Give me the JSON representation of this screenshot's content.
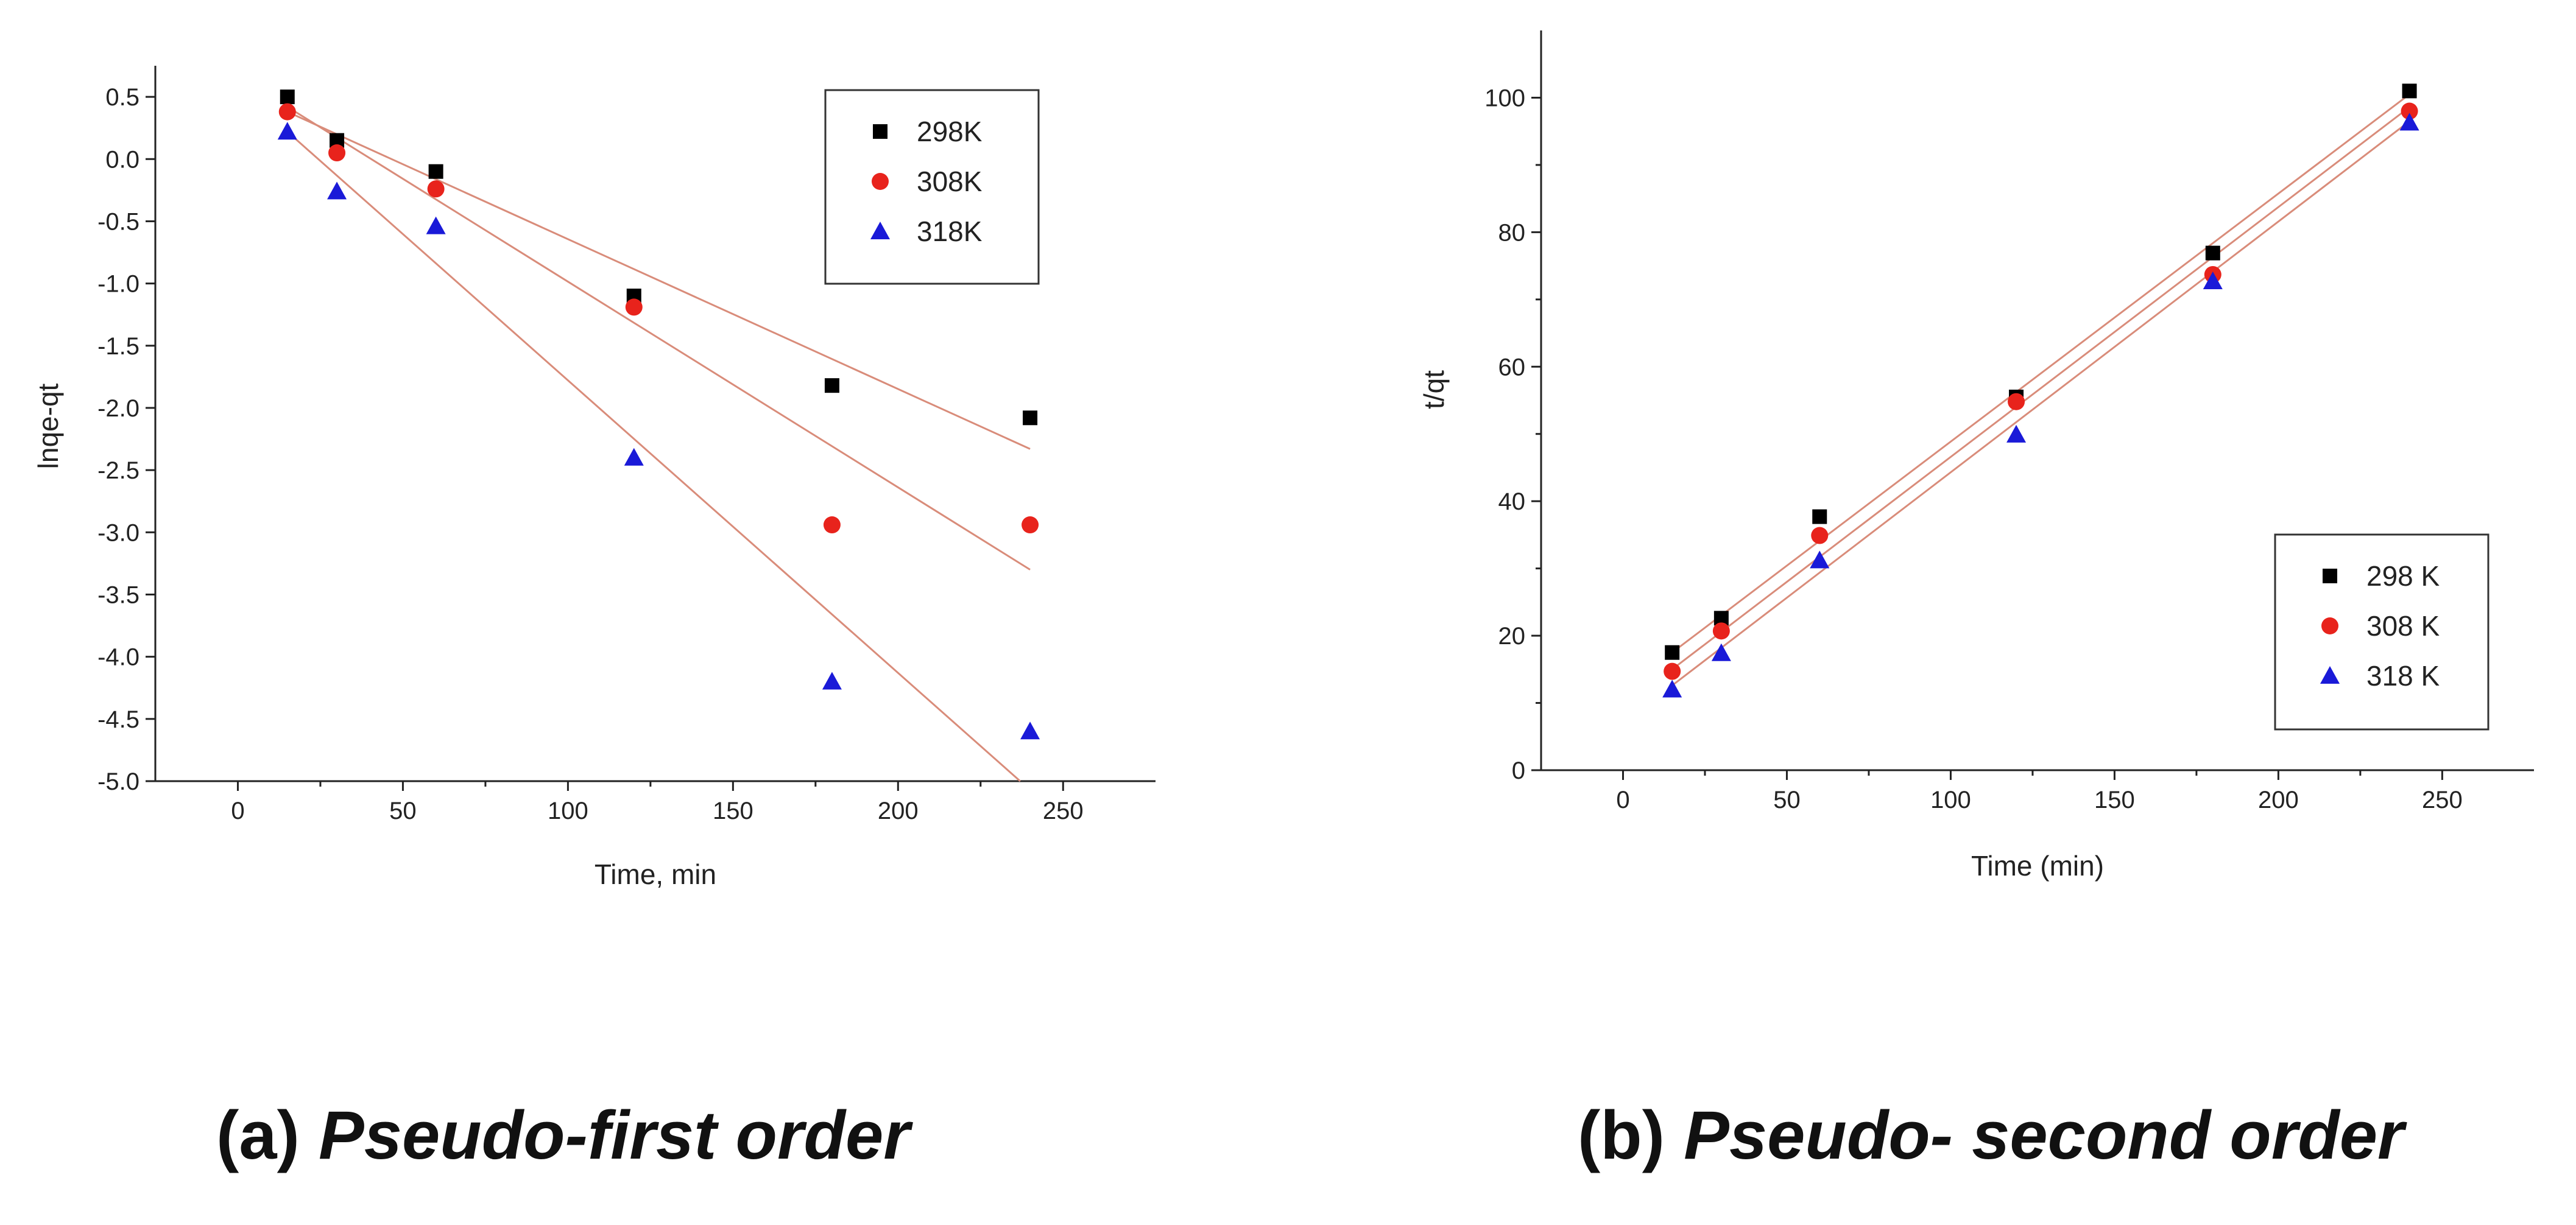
{
  "chart_data": [
    {
      "type": "scatter",
      "panel": "a",
      "caption_letter": "(a)",
      "caption_title": "Pseudo-first order",
      "xlabel": "Time, min",
      "ylabel": "lnqe-qt",
      "xlim": [
        -25,
        278
      ],
      "ylim": [
        -5.0,
        0.75
      ],
      "xticks": [
        0,
        50,
        100,
        150,
        200,
        250
      ],
      "yticks": [
        0.5,
        0.0,
        -0.5,
        -1.0,
        -1.5,
        -2.0,
        -2.5,
        -3.0,
        -3.5,
        -4.0,
        -4.5,
        -5.0
      ],
      "ytick_labels": [
        "0.5",
        "0.0",
        "-0.5",
        "-1.0",
        "-1.5",
        "-2.0",
        "-2.5",
        "-3.0",
        "-3.5",
        "-4.0",
        "-4.5",
        "-5.0"
      ],
      "legend_position": "top-right",
      "fit_line_color": "#d98c7a",
      "series": [
        {
          "name": "298K",
          "marker": "square",
          "color": "#000000",
          "x": [
            15,
            30,
            60,
            120,
            180,
            240
          ],
          "y": [
            0.5,
            0.15,
            -0.1,
            -1.1,
            -1.82,
            -2.08
          ],
          "fit": {
            "x": [
              15,
              240
            ],
            "y": [
              0.38,
              -2.33
            ]
          }
        },
        {
          "name": "308K",
          "marker": "circle",
          "color": "#e8231c",
          "x": [
            15,
            30,
            60,
            120,
            180,
            240
          ],
          "y": [
            0.38,
            0.05,
            -0.24,
            -1.19,
            -2.94,
            -2.94
          ],
          "fit": {
            "x": [
              15,
              240
            ],
            "y": [
              0.42,
              -3.3
            ]
          }
        },
        {
          "name": "318K",
          "marker": "triangle",
          "color": "#1a1ad8",
          "x": [
            15,
            30,
            60,
            120,
            180,
            240
          ],
          "y": [
            0.22,
            -0.26,
            -0.54,
            -2.4,
            -4.2,
            -4.6
          ],
          "fit": {
            "x": [
              15,
              237
            ],
            "y": [
              0.22,
              -5.0
            ]
          }
        }
      ]
    },
    {
      "type": "scatter",
      "panel": "b",
      "caption_letter": "(b)",
      "caption_title": "Pseudo- second order",
      "xlabel": "Time (min)",
      "ylabel": "t/qt",
      "xlim": [
        -25,
        278
      ],
      "ylim": [
        0,
        110
      ],
      "xticks": [
        0,
        50,
        100,
        150,
        200,
        250
      ],
      "yticks": [
        0,
        20,
        40,
        60,
        80,
        100
      ],
      "ytick_labels": [
        "0",
        "20",
        "40",
        "60",
        "80",
        "100"
      ],
      "legend_position": "lower-right",
      "fit_line_color": "#d98c7a",
      "series": [
        {
          "name": "298 K",
          "marker": "square",
          "color": "#000000",
          "x": [
            15,
            30,
            60,
            120,
            180,
            240
          ],
          "y": [
            17.5,
            22.6,
            37.7,
            55.5,
            76.9,
            101.0
          ],
          "fit": {
            "x": [
              15,
              240
            ],
            "y": [
              17.5,
              100.5
            ]
          }
        },
        {
          "name": "308 K",
          "marker": "circle",
          "color": "#e8231c",
          "x": [
            15,
            30,
            60,
            120,
            180,
            240
          ],
          "y": [
            14.7,
            20.7,
            34.9,
            54.8,
            73.7,
            98.0
          ],
          "fit": {
            "x": [
              15,
              240
            ],
            "y": [
              15.0,
              98.6
            ]
          }
        },
        {
          "name": "318 K",
          "marker": "triangle",
          "color": "#1a1ad8",
          "x": [
            15,
            30,
            60,
            120,
            180,
            240
          ],
          "y": [
            12.0,
            17.4,
            31.2,
            49.9,
            72.7,
            96.3
          ],
          "fit": {
            "x": [
              15,
              240
            ],
            "y": [
              12.6,
              96.5
            ]
          }
        }
      ]
    }
  ]
}
